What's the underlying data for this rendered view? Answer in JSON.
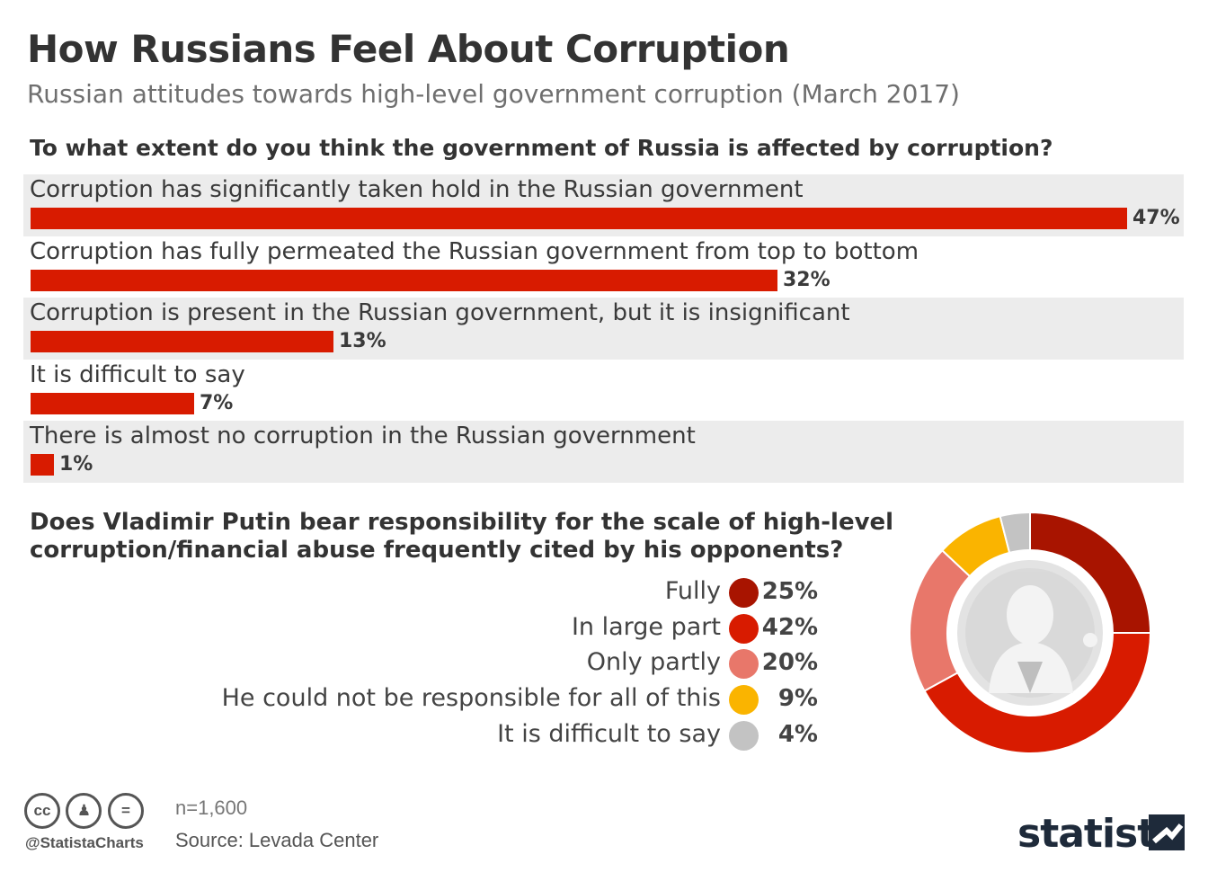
{
  "header": {
    "title": "How Russians Feel About Corruption",
    "subtitle": "Russian attitudes towards high-level government corruption (March 2017)"
  },
  "chart_data": [
    {
      "type": "bar",
      "orientation": "horizontal",
      "title": "To what extent do you think the government of Russia is affected by corruption?",
      "bar_color": "#d81b00",
      "categories": [
        "Corruption has significantly taken hold in the Russian government",
        "Corruption has fully permeated the Russian government from top to bottom",
        "Corruption is present in the Russian government, but it is insignificant",
        "It is difficult to say",
        "There is almost no corruption in the Russian government"
      ],
      "values": [
        47,
        32,
        13,
        7,
        1
      ],
      "value_labels": [
        "47%",
        "32%",
        "13%",
        "7%",
        "1%"
      ],
      "xlim": [
        0,
        47
      ]
    },
    {
      "type": "pie",
      "style": "donut",
      "title": "Does Vladimir Putin bear responsibility for the scale of high-level corruption/financial abuse frequently cited by his opponents?",
      "title_lines": [
        "Does Vladimir Putin bear responsibility for the scale of high-level",
        "corruption/financial abuse frequently cited by his opponents?"
      ],
      "categories": [
        "Fully",
        "In large part",
        "Only partly",
        "He could not be responsible for all of this",
        "It is difficult to say"
      ],
      "values": [
        25,
        42,
        20,
        9,
        4
      ],
      "value_labels": [
        "25%",
        "42%",
        "20%",
        "9%",
        "4%"
      ],
      "colors": [
        "#a81400",
        "#d81b00",
        "#e8776a",
        "#fab400",
        "#c3c3c3"
      ],
      "legend_position": "left"
    }
  ],
  "footer": {
    "license_icons": [
      "cc",
      "by",
      "nd"
    ],
    "handle": "@StatistaCharts",
    "sample": "n=1,600",
    "source": "Source: Levada Center",
    "brand": "statista"
  }
}
